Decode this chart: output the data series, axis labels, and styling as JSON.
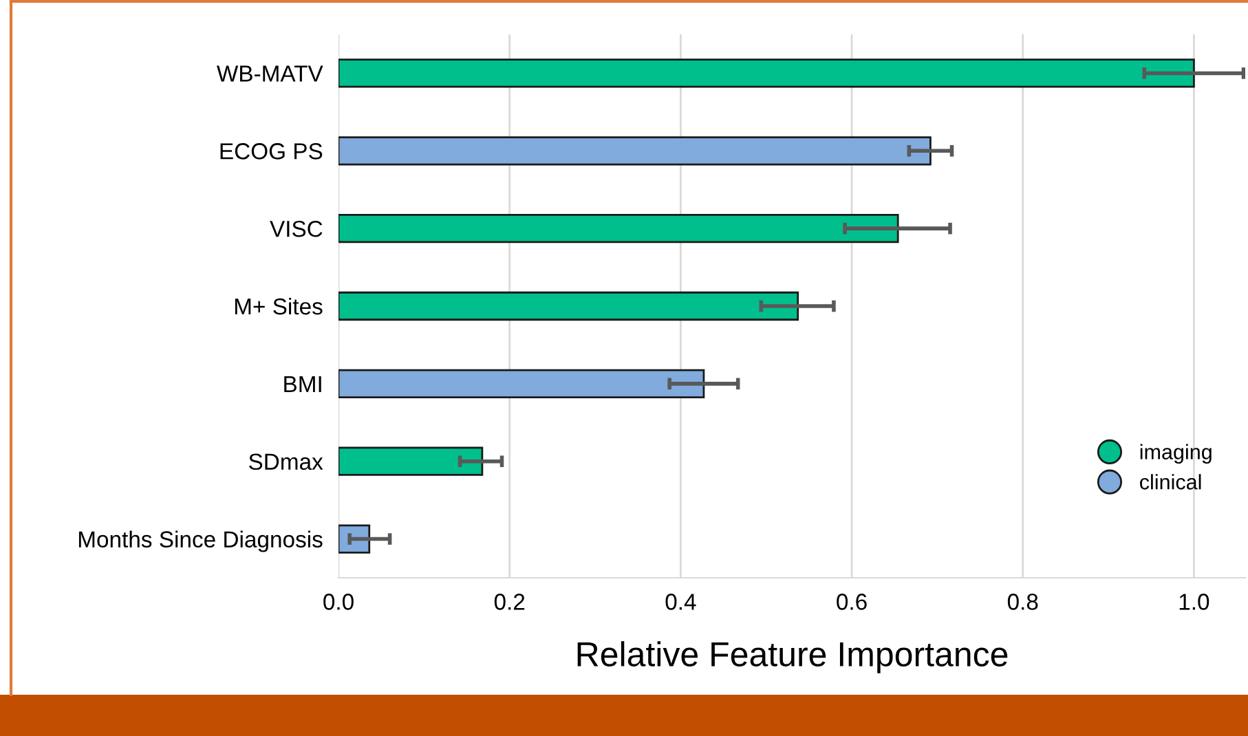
{
  "chart_data": {
    "type": "bar",
    "orientation": "horizontal",
    "xlabel": "Relative Feature Importance",
    "categories": [
      "WB-MATV",
      "ECOG PS",
      "VISC",
      "M+ Sites",
      "BMI",
      "SDmax",
      "Months Since Diagnosis"
    ],
    "series": [
      {
        "name": "imaging",
        "color": "#00bf8c",
        "values": [
          1.0,
          null,
          0.654,
          0.537,
          null,
          0.168,
          null
        ],
        "errors": [
          [
            0.942,
            1.058
          ],
          null,
          [
            0.592,
            0.715
          ],
          [
            0.494,
            0.579
          ],
          null,
          [
            0.142,
            0.191
          ],
          null
        ]
      },
      {
        "name": "clinical",
        "color": "#81aadd",
        "values": [
          null,
          0.692,
          null,
          null,
          0.427,
          null,
          0.036
        ],
        "errors": [
          null,
          [
            0.667,
            0.717
          ],
          null,
          null,
          [
            0.387,
            0.467
          ],
          null,
          [
            0.013,
            0.06
          ]
        ]
      }
    ],
    "xlim": [
      0,
      1.06
    ],
    "xticks": [
      {
        "value": 0,
        "label": "0.0"
      },
      {
        "value": 0.2,
        "label": "0.2"
      },
      {
        "value": 0.4,
        "label": "0.4"
      },
      {
        "value": 0.6,
        "label": "0.6"
      },
      {
        "value": 0.8,
        "label": "0.8"
      },
      {
        "value": 1.0,
        "label": "1.0"
      }
    ],
    "grid": "x",
    "legend": "lower right"
  }
}
